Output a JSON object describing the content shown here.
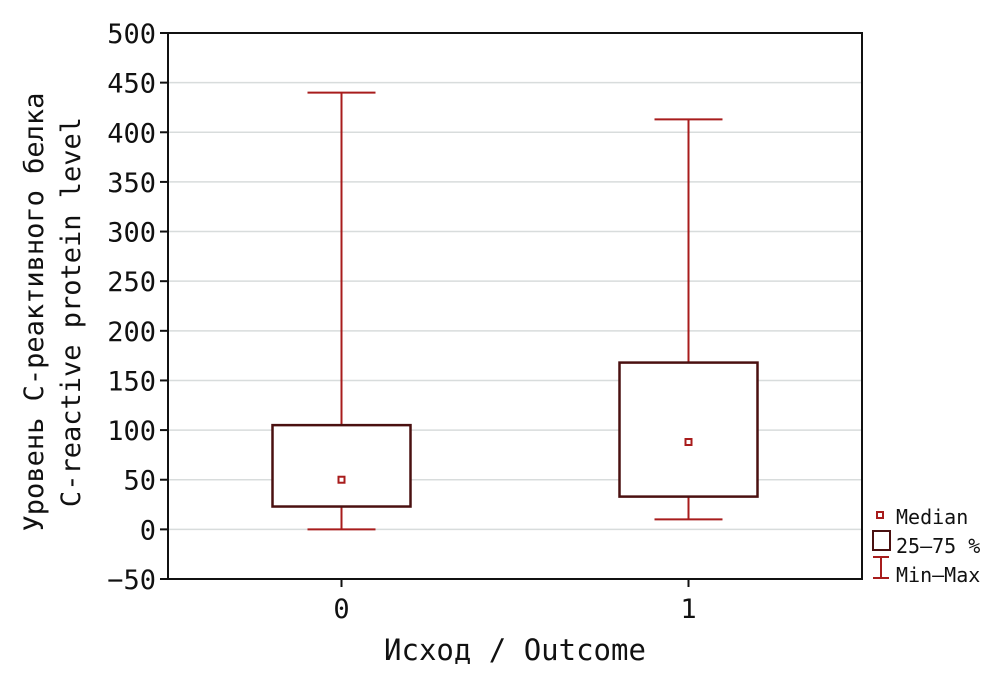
{
  "chart_data": {
    "type": "boxplot",
    "xlabel": "Исход / Outcome",
    "ylabel_lines": [
      "Уровень С-реактивного белка",
      "C-reactive protein level"
    ],
    "ylim": [
      -50,
      500
    ],
    "yticks": [
      -50,
      0,
      50,
      100,
      150,
      200,
      250,
      300,
      350,
      400,
      450,
      500
    ],
    "ytick_labels": [
      "−50",
      "0",
      "50",
      "100",
      "150",
      "200",
      "250",
      "300",
      "350",
      "400",
      "450",
      "500"
    ],
    "grid": true,
    "categories": [
      "0",
      "1"
    ],
    "boxes": [
      {
        "category": "0",
        "min": 0,
        "q1": 23,
        "median": 50,
        "q3": 105,
        "max": 440
      },
      {
        "category": "1",
        "min": 10,
        "q1": 33,
        "median": 88,
        "q3": 168,
        "max": 413
      }
    ],
    "legend": {
      "placement": "bottom-right outside",
      "items": [
        {
          "symbol": "median-square",
          "label": "Median"
        },
        {
          "symbol": "box",
          "label": "25–75 %"
        },
        {
          "symbol": "whisker",
          "label": "Min–Max"
        }
      ]
    },
    "colors": {
      "box": "#4a1010",
      "whisker": "#a81c1c",
      "median": "#a81c1c",
      "grid": "#d8dcdc",
      "frame": "#111111"
    }
  }
}
